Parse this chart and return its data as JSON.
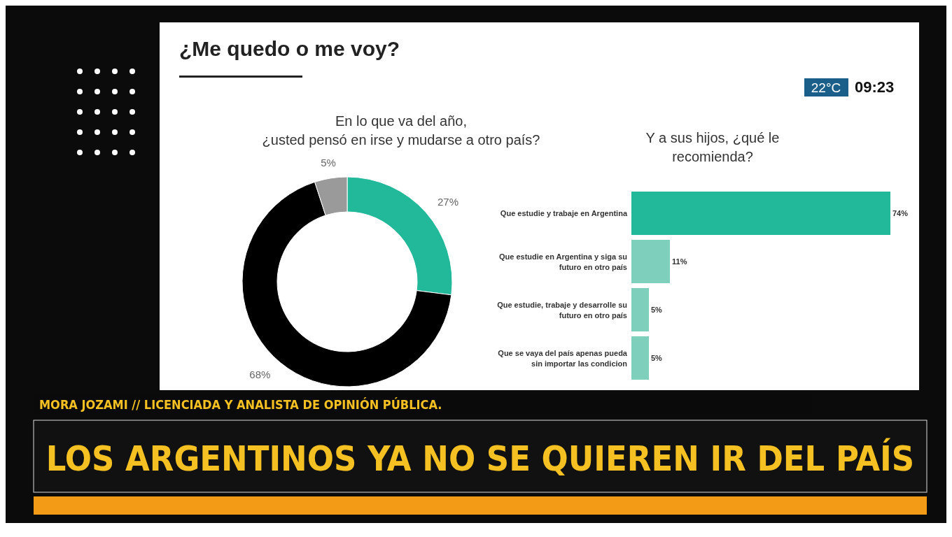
{
  "chart_data": [
    {
      "type": "other",
      "annotations": [
        "¿Me quedo o me voy?",
        "22°C",
        "09:23",
        "MORA JOZAMI // LICENCIADA Y ANALISTA DE OPINIÓN PÚBLICA.",
        "LOS ARGENTINOS YA NO SE QUIEREN IR DEL PAÍS"
      ]
    },
    {
      "type": "donut",
      "title": "En lo que va del año,\n¿usted pensó en irse y mudarse a otro país?",
      "categories": [
        null,
        null,
        null
      ],
      "values": [
        27,
        68,
        5
      ],
      "colors": [
        "#21b99a",
        "#000000",
        "#9a9a9a"
      ],
      "value_labels": [
        "27%",
        "68%",
        "5%"
      ]
    },
    {
      "type": "bar",
      "orientation": "horizontal",
      "title": "Y a sus hijos, ¿qué le\nrecomienda?",
      "categories": [
        "Que estudie y trabaje en Argentina",
        "Que estudie en Argentina y siga su futuro en otro país",
        "Que estudie, trabaje y desarrolle su futuro en otro país",
        "Que se vaya del país apenas pueda sin importar las condicion"
      ],
      "values": [
        74,
        11,
        5,
        5
      ],
      "colors": [
        "#21b99a",
        "#7fcfbd",
        "#7fcfbd",
        "#7fcfbd"
      ],
      "value_labels": [
        "74%",
        "11%",
        "5%",
        "5%"
      ]
    }
  ]
}
